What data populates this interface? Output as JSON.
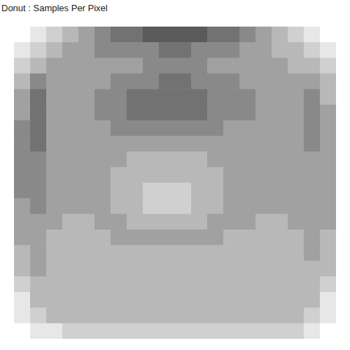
{
  "chart_data": {
    "type": "heatmap",
    "title": "Donut : Samples Per Pixel",
    "tick_labels": false,
    "cells": [
      [
        0,
        1,
        2,
        3,
        4,
        5,
        6,
        6,
        7,
        7,
        7,
        7,
        6,
        6,
        5,
        4,
        3,
        2,
        1,
        0
      ],
      [
        1,
        2,
        3,
        4,
        4,
        5,
        5,
        5,
        5,
        6,
        6,
        5,
        5,
        5,
        4,
        4,
        3,
        3,
        2,
        1
      ],
      [
        2,
        3,
        4,
        4,
        4,
        4,
        4,
        4,
        5,
        5,
        5,
        5,
        4,
        4,
        4,
        4,
        4,
        3,
        3,
        2
      ],
      [
        3,
        5,
        4,
        4,
        4,
        4,
        5,
        5,
        5,
        6,
        6,
        5,
        5,
        5,
        4,
        4,
        4,
        4,
        4,
        3
      ],
      [
        4,
        6,
        4,
        4,
        4,
        5,
        5,
        6,
        6,
        6,
        6,
        6,
        5,
        5,
        5,
        4,
        4,
        4,
        5,
        3
      ],
      [
        4,
        6,
        4,
        4,
        4,
        5,
        5,
        6,
        6,
        6,
        6,
        6,
        5,
        5,
        5,
        4,
        4,
        4,
        5,
        4
      ],
      [
        5,
        6,
        4,
        4,
        4,
        4,
        5,
        5,
        5,
        5,
        5,
        5,
        5,
        4,
        4,
        4,
        4,
        4,
        5,
        4
      ],
      [
        5,
        6,
        4,
        4,
        4,
        4,
        4,
        4,
        4,
        4,
        4,
        4,
        4,
        4,
        4,
        4,
        4,
        4,
        5,
        4
      ],
      [
        5,
        5,
        4,
        4,
        4,
        4,
        4,
        3,
        3,
        3,
        3,
        3,
        4,
        4,
        4,
        4,
        4,
        4,
        4,
        4
      ],
      [
        5,
        5,
        4,
        4,
        4,
        4,
        3,
        3,
        3,
        3,
        3,
        3,
        3,
        4,
        4,
        4,
        4,
        4,
        4,
        4
      ],
      [
        5,
        5,
        4,
        4,
        4,
        4,
        3,
        3,
        2,
        2,
        2,
        3,
        3,
        4,
        4,
        4,
        4,
        4,
        4,
        4
      ],
      [
        4,
        5,
        4,
        4,
        4,
        4,
        3,
        3,
        2,
        2,
        2,
        3,
        3,
        4,
        4,
        4,
        4,
        4,
        4,
        4
      ],
      [
        4,
        4,
        4,
        3,
        3,
        4,
        4,
        3,
        3,
        3,
        3,
        3,
        4,
        4,
        4,
        3,
        3,
        4,
        4,
        4
      ],
      [
        4,
        4,
        3,
        3,
        3,
        3,
        4,
        4,
        4,
        4,
        4,
        4,
        4,
        3,
        3,
        3,
        3,
        3,
        4,
        3
      ],
      [
        3,
        4,
        3,
        3,
        3,
        3,
        3,
        3,
        3,
        3,
        3,
        3,
        3,
        3,
        3,
        3,
        3,
        3,
        4,
        3
      ],
      [
        3,
        4,
        3,
        3,
        3,
        3,
        3,
        3,
        3,
        3,
        3,
        3,
        3,
        3,
        3,
        3,
        3,
        3,
        3,
        3
      ],
      [
        2,
        3,
        3,
        3,
        3,
        3,
        3,
        3,
        3,
        3,
        3,
        3,
        3,
        3,
        3,
        3,
        3,
        3,
        3,
        2
      ],
      [
        1,
        3,
        3,
        3,
        3,
        3,
        3,
        3,
        3,
        3,
        3,
        3,
        3,
        3,
        3,
        3,
        3,
        3,
        3,
        1
      ],
      [
        1,
        2,
        3,
        3,
        3,
        3,
        3,
        3,
        3,
        3,
        3,
        3,
        3,
        3,
        3,
        3,
        3,
        3,
        2,
        1
      ],
      [
        0,
        1,
        1,
        2,
        2,
        2,
        2,
        2,
        2,
        2,
        2,
        2,
        2,
        2,
        2,
        2,
        2,
        2,
        1,
        0
      ]
    ]
  }
}
